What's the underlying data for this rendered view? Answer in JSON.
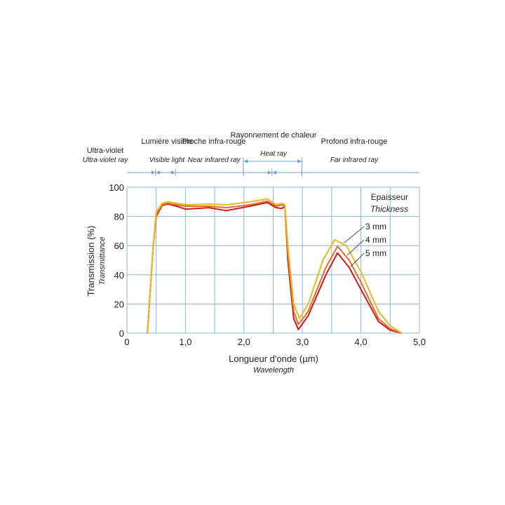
{
  "chart_data": {
    "type": "line",
    "xlabel": "Longueur d'onde (µm)",
    "xlabel_sub": "Wavelength",
    "ylabel": "Transmission (%)",
    "ylabel_sub": "Transmittance",
    "xlim": [
      0,
      5
    ],
    "ylim": [
      0,
      100
    ],
    "xticks": [
      "0",
      "1,0",
      "2,0",
      "3,0",
      "4,0",
      "5,0"
    ],
    "yticks": [
      "0",
      "20",
      "40",
      "60",
      "80",
      "100"
    ],
    "grid": true,
    "legend_title": "Epaisseur",
    "legend_subtitle": "Thickness",
    "colors": {
      "3 mm": "#e8b820",
      "4 mm": "#e86a2a",
      "5 mm": "#cc1a1a",
      "grid": "#8ab4dc"
    },
    "series": [
      {
        "name": "3 mm",
        "x": [
          0.35,
          0.45,
          0.5,
          0.6,
          0.7,
          0.85,
          1.0,
          1.4,
          1.7,
          2.1,
          2.4,
          2.55,
          2.65,
          2.7,
          2.75,
          2.85,
          2.95,
          3.1,
          3.35,
          3.55,
          3.75,
          4.0,
          4.3,
          4.5,
          4.7
        ],
        "y": [
          0,
          60,
          83,
          89,
          90,
          89,
          88,
          88.5,
          88,
          90,
          92,
          88,
          89,
          88,
          60,
          20,
          10,
          20,
          50,
          64,
          60,
          42,
          15,
          5,
          0
        ]
      },
      {
        "name": "4 mm",
        "x": [
          0.35,
          0.45,
          0.5,
          0.6,
          0.7,
          0.85,
          1.0,
          1.4,
          1.7,
          2.1,
          2.4,
          2.55,
          2.65,
          2.7,
          2.75,
          2.85,
          2.93,
          3.1,
          3.4,
          3.6,
          3.8,
          4.0,
          4.3,
          4.5,
          4.7
        ],
        "y": [
          0,
          60,
          81,
          88,
          89,
          88,
          87,
          87,
          86,
          88,
          90.5,
          87,
          88,
          87,
          55,
          15,
          6,
          15,
          45,
          59.5,
          50,
          35,
          10,
          3,
          0
        ]
      },
      {
        "name": "5 mm",
        "x": [
          0.35,
          0.45,
          0.5,
          0.6,
          0.7,
          0.85,
          1.0,
          1.4,
          1.7,
          2.1,
          2.4,
          2.55,
          2.65,
          2.7,
          2.75,
          2.85,
          2.93,
          3.1,
          3.4,
          3.6,
          3.8,
          4.0,
          4.3,
          4.5,
          4.7
        ],
        "y": [
          0,
          60,
          80,
          87.5,
          88.5,
          87,
          85,
          86,
          84,
          87,
          89.5,
          86,
          85.5,
          87,
          50,
          10,
          2.5,
          12,
          40,
          55,
          45,
          30,
          8,
          2,
          0
        ]
      }
    ],
    "bands": [
      {
        "label": "Ultra-violet",
        "sub": "Ultra-violet ray"
      },
      {
        "label": "Lumière visible",
        "sub": "Visible light"
      },
      {
        "label": "Proche infra-rouge",
        "sub": "Near infrared ray"
      },
      {
        "label": "Rayonnement de chaleur",
        "sub": "Heat ray"
      },
      {
        "label": "Profond infra-rouge",
        "sub": "Far infrared ray"
      }
    ]
  }
}
